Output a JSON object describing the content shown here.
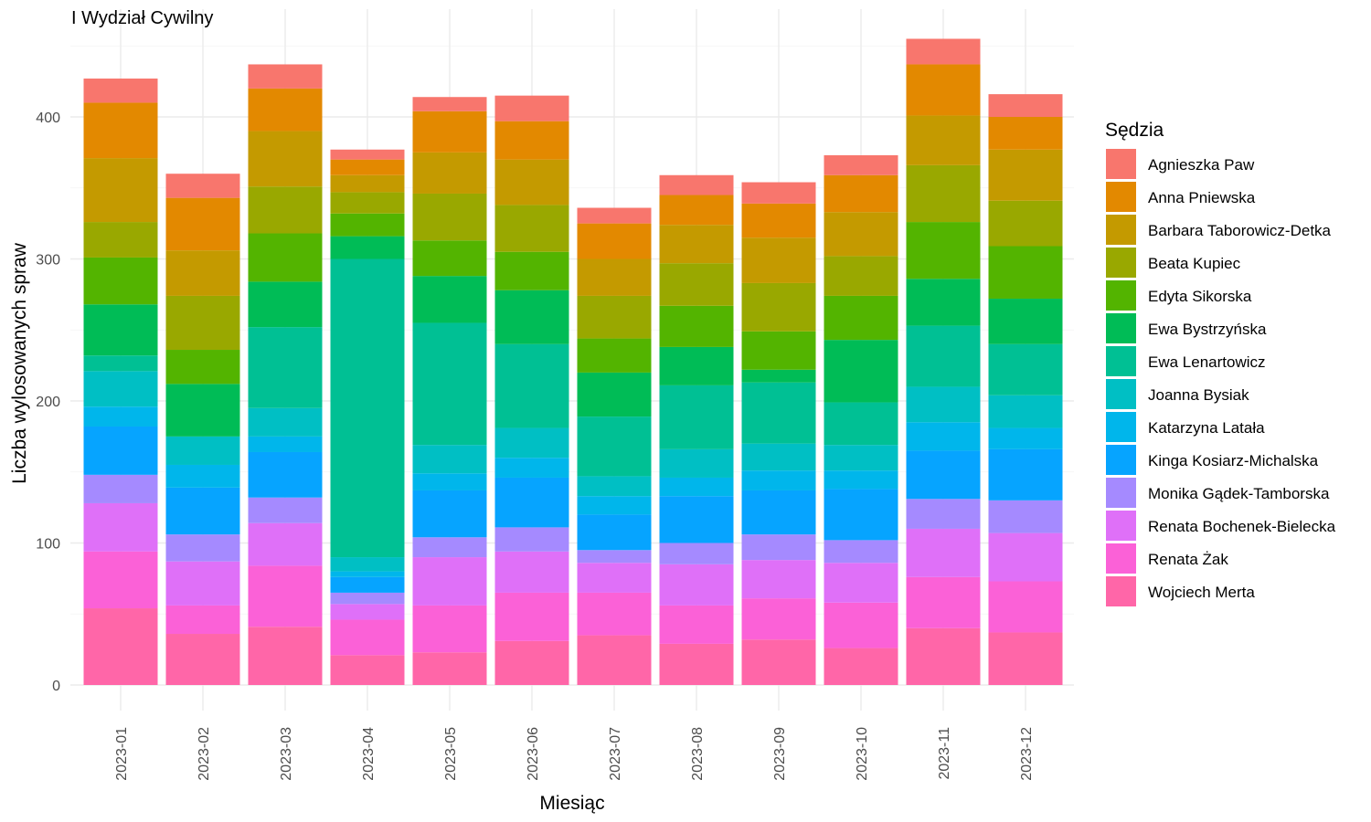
{
  "chart_data": {
    "type": "bar",
    "stacked": true,
    "title": "I Wydział Cywilny",
    "xlabel": "Miesiąc",
    "ylabel": "Liczba wylosowanych spraw",
    "ylim": [
      0,
      460
    ],
    "yticks": [
      0,
      100,
      200,
      300,
      400
    ],
    "grid": true,
    "legend_title": "Sędzia",
    "legend_position": "right",
    "categories": [
      "2023-01",
      "2023-02",
      "2023-03",
      "2023-04",
      "2023-05",
      "2023-06",
      "2023-07",
      "2023-08",
      "2023-09",
      "2023-10",
      "2023-11",
      "2023-12"
    ],
    "series": [
      {
        "name": "Agnieszka Paw",
        "color": "#F8766D",
        "values": [
          17,
          17,
          17,
          7,
          10,
          18,
          11,
          14,
          15,
          14,
          18,
          16
        ]
      },
      {
        "name": "Anna Pniewska",
        "color": "#E38900",
        "values": [
          39,
          37,
          30,
          11,
          29,
          27,
          25,
          21,
          24,
          26,
          36,
          23
        ]
      },
      {
        "name": "Barbara Taborowicz-Detka",
        "color": "#C49A00",
        "values": [
          45,
          32,
          39,
          12,
          29,
          32,
          26,
          27,
          32,
          31,
          35,
          36
        ]
      },
      {
        "name": "Beata Kupiec",
        "color": "#99A800",
        "values": [
          25,
          38,
          33,
          15,
          33,
          33,
          30,
          30,
          34,
          28,
          40,
          32
        ]
      },
      {
        "name": "Edyta Sikorska",
        "color": "#53B400",
        "values": [
          33,
          24,
          34,
          16,
          25,
          27,
          24,
          29,
          27,
          31,
          40,
          37
        ]
      },
      {
        "name": "Ewa Bystrzyńska",
        "color": "#00BC56",
        "values": [
          36,
          37,
          32,
          16,
          33,
          38,
          31,
          27,
          9,
          44,
          33,
          32
        ]
      },
      {
        "name": "Ewa Lenartowicz",
        "color": "#00C094",
        "values": [
          11,
          0,
          57,
          210,
          86,
          59,
          42,
          45,
          43,
          30,
          43,
          36
        ]
      },
      {
        "name": "Joanna Bysiak",
        "color": "#00BFC4",
        "values": [
          25,
          20,
          20,
          10,
          20,
          21,
          14,
          20,
          19,
          18,
          25,
          23
        ]
      },
      {
        "name": "Katarzyna Latała",
        "color": "#00B6EB",
        "values": [
          14,
          16,
          11,
          4,
          12,
          14,
          13,
          13,
          14,
          13,
          20,
          15
        ]
      },
      {
        "name": "Kinga Kosiarz-Michalska",
        "color": "#06A4FF",
        "values": [
          34,
          33,
          32,
          11,
          33,
          35,
          25,
          33,
          31,
          36,
          34,
          36
        ]
      },
      {
        "name": "Monika Gądek-Tamborska",
        "color": "#A58AFF",
        "values": [
          20,
          19,
          18,
          8,
          14,
          17,
          9,
          15,
          18,
          16,
          21,
          23
        ]
      },
      {
        "name": "Renata Bochenek-Bielecka",
        "color": "#DF70F8",
        "values": [
          34,
          31,
          30,
          11,
          34,
          29,
          21,
          29,
          27,
          28,
          34,
          34
        ]
      },
      {
        "name": "Renata Żak",
        "color": "#FB61D7",
        "values": [
          40,
          20,
          43,
          25,
          33,
          34,
          30,
          27,
          29,
          32,
          36,
          36
        ]
      },
      {
        "name": "Wojciech Merta",
        "color": "#FF66A8",
        "values": [
          54,
          36,
          41,
          21,
          23,
          31,
          35,
          29,
          32,
          26,
          40,
          37
        ]
      }
    ]
  }
}
